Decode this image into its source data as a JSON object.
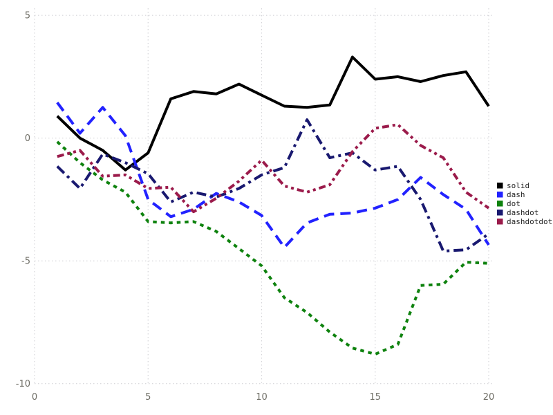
{
  "chart_data": {
    "type": "line",
    "title": "",
    "xlabel": "",
    "ylabel": "",
    "x": [
      1,
      2,
      3,
      4,
      5,
      6,
      7,
      8,
      9,
      10,
      11,
      12,
      13,
      14,
      15,
      16,
      17,
      18,
      19,
      20
    ],
    "series": [
      {
        "name": "solid",
        "color": "#000000",
        "dash": "solid",
        "values": [
          0.9,
          0.0,
          -0.5,
          -1.3,
          -0.6,
          1.6,
          1.9,
          1.8,
          2.2,
          1.75,
          1.3,
          1.25,
          1.35,
          3.3,
          2.4,
          2.5,
          2.3,
          2.55,
          2.7,
          1.3
        ]
      },
      {
        "name": "dash",
        "color": "#2222ff",
        "dash": "dash",
        "values": [
          1.45,
          0.2,
          1.25,
          0.1,
          -2.5,
          -3.2,
          -2.9,
          -2.25,
          -2.6,
          -3.15,
          -4.45,
          -3.45,
          -3.1,
          -3.05,
          -2.85,
          -2.5,
          -1.6,
          -2.3,
          -2.9,
          -4.35
        ]
      },
      {
        "name": "dot",
        "color": "#0e820e",
        "dash": "dot",
        "values": [
          -0.15,
          -1.0,
          -1.7,
          -2.2,
          -3.4,
          -3.45,
          -3.4,
          -3.8,
          -4.5,
          -5.2,
          -6.5,
          -7.1,
          -7.9,
          -8.55,
          -8.8,
          -8.4,
          -6.0,
          -5.95,
          -5.05,
          -5.1
        ]
      },
      {
        "name": "dashdot",
        "color": "#191970",
        "dash": "dashdot",
        "values": [
          -1.15,
          -2.05,
          -0.65,
          -1.0,
          -1.45,
          -2.6,
          -2.2,
          -2.4,
          -2.05,
          -1.5,
          -1.2,
          0.75,
          -0.8,
          -0.6,
          -1.3,
          -1.15,
          -2.5,
          -4.6,
          -4.55,
          -3.9
        ]
      },
      {
        "name": "dashdotdot",
        "color": "#9b1b4b",
        "dash": "dashdotdot",
        "values": [
          -0.75,
          -0.5,
          -1.55,
          -1.5,
          -2.05,
          -2.0,
          -3.0,
          -2.45,
          -1.75,
          -0.9,
          -1.95,
          -2.2,
          -1.9,
          -0.55,
          0.4,
          0.55,
          -0.3,
          -0.8,
          -2.2,
          -2.85
        ]
      }
    ],
    "xticks": [
      0,
      5,
      10,
      15,
      20
    ],
    "yticks": [
      5,
      0,
      -5,
      -10
    ],
    "xlim": [
      0,
      20.3
    ],
    "ylim": [
      -10.3,
      5.2
    ],
    "grid": true,
    "grid_style": "dotted",
    "grid_color": "#d4d4d8",
    "tick_label_color": "#6f6e66",
    "legend_position": "right-outside",
    "legend": {
      "items": [
        {
          "label": "solid",
          "color": "#000000"
        },
        {
          "label": "dash",
          "color": "#2222ff"
        },
        {
          "label": "dot",
          "color": "#0e820e"
        },
        {
          "label": "dashdot",
          "color": "#191970"
        },
        {
          "label": "dashdotdot",
          "color": "#9b1b4b"
        }
      ]
    }
  },
  "layout_note": "white background, no axis spines, dotted gridlines, thick 4px lines"
}
